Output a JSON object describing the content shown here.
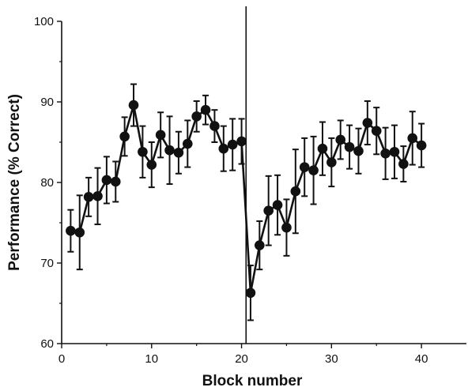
{
  "chart_data": {
    "type": "line",
    "xlabel": "Block number",
    "ylabel": "Performance (% Correct)",
    "xlim": [
      0,
      45
    ],
    "ylim": [
      60,
      100
    ],
    "x_ticks": [
      0,
      10,
      20,
      30,
      40
    ],
    "y_ticks": [
      60,
      70,
      80,
      90,
      100
    ],
    "grid": false,
    "legend": "none",
    "vline_x": 20.5,
    "series": [
      {
        "segment": "blocks 1-20",
        "x": [
          1,
          2,
          3,
          4,
          5,
          6,
          7,
          8,
          9,
          10,
          11,
          12,
          13,
          14,
          15,
          16,
          17,
          18,
          19,
          20
        ],
        "y": [
          74.0,
          73.8,
          78.2,
          78.3,
          80.3,
          80.1,
          85.7,
          89.6,
          83.8,
          82.2,
          85.9,
          84.0,
          83.7,
          84.8,
          88.2,
          89.0,
          87.0,
          84.2,
          84.7,
          85.1
        ],
        "err": [
          2.6,
          4.6,
          2.4,
          3.5,
          2.9,
          2.5,
          2.4,
          2.6,
          3.2,
          2.8,
          2.8,
          4.2,
          2.6,
          2.9,
          1.9,
          1.8,
          2.0,
          2.8,
          3.2,
          2.8
        ]
      },
      {
        "segment": "blocks 21-40",
        "x": [
          21,
          22,
          23,
          24,
          25,
          26,
          27,
          28,
          29,
          30,
          31,
          32,
          33,
          34,
          35,
          36,
          37,
          38,
          39,
          40
        ],
        "y": [
          66.3,
          72.2,
          76.5,
          77.2,
          74.4,
          78.9,
          81.9,
          81.5,
          84.2,
          82.5,
          85.3,
          84.4,
          83.9,
          87.4,
          86.4,
          83.6,
          83.8,
          82.3,
          85.5,
          84.6
        ],
        "err": [
          3.4,
          3.0,
          4.3,
          3.7,
          3.5,
          5.2,
          3.6,
          4.2,
          3.3,
          3.0,
          2.4,
          2.7,
          2.8,
          2.7,
          2.9,
          3.2,
          3.3,
          2.2,
          3.3,
          2.7
        ]
      }
    ],
    "colors": {
      "line": "#111111",
      "marker": "#111111",
      "axis": "#111111"
    }
  }
}
